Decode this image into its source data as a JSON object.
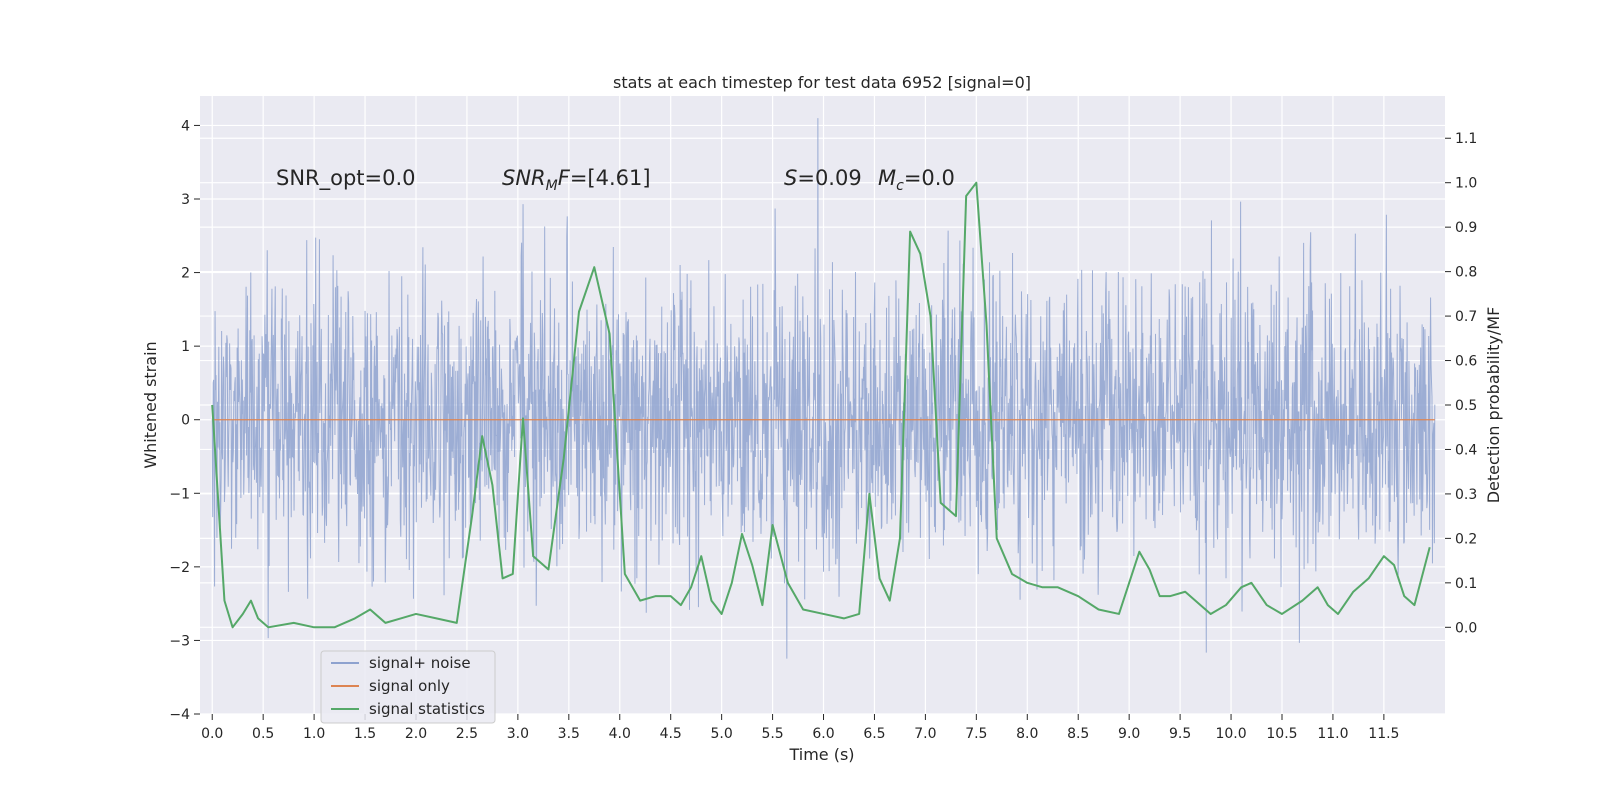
{
  "chart_data": {
    "type": "line",
    "title": "stats at each timestep for test data 6952 [signal=0]",
    "xlabel": "Time (s)",
    "ylabel": "Whitened strain",
    "y2label": "Detection probability/MF",
    "xlim": [
      -0.12,
      12.1
    ],
    "ylim": [
      -4.0,
      4.4
    ],
    "y2lim": [
      -0.195,
      1.195
    ],
    "x_ticks": [
      0.0,
      0.5,
      1.0,
      1.5,
      2.0,
      2.5,
      3.0,
      3.5,
      4.0,
      4.5,
      5.0,
      5.5,
      6.0,
      6.5,
      7.0,
      7.5,
      8.0,
      8.5,
      9.0,
      9.5,
      10.0,
      10.5,
      11.0,
      11.5
    ],
    "x_tick_labels": [
      "0.0",
      "0.5",
      "1.0",
      "1.5",
      "2.0",
      "2.5",
      "3.0",
      "3.5",
      "4.0",
      "4.5",
      "5.0",
      "5.5",
      "6.0",
      "6.5",
      "7.0",
      "7.5",
      "8.0",
      "8.5",
      "9.0",
      "9.5",
      "10.0",
      "10.5",
      "11.0",
      "11.5"
    ],
    "y_ticks": [
      -4,
      -3,
      -2,
      -1,
      0,
      1,
      2,
      3,
      4
    ],
    "y_tick_labels": [
      "−4",
      "−3",
      "−2",
      "−1",
      "0",
      "1",
      "2",
      "3",
      "4"
    ],
    "y2_ticks": [
      0.0,
      0.1,
      0.2,
      0.3,
      0.4,
      0.5,
      0.6,
      0.7,
      0.8,
      0.9,
      1.0,
      1.1
    ],
    "y2_tick_labels": [
      "0.0",
      "0.1",
      "0.2",
      "0.3",
      "0.4",
      "0.5",
      "0.6",
      "0.7",
      "0.8",
      "0.9",
      "1.0",
      "1.1"
    ],
    "grid": true,
    "legend_position": "bottom-left",
    "annotations": {
      "snr_opt": "SNR_opt=0.0",
      "snr_mf": "=[4.61]",
      "s_stat": "=0.09",
      "mc": "=0.0"
    },
    "series": [
      {
        "name": "signal+ noise",
        "axis": "left",
        "color": "#8ea2cf",
        "x_range": [
          0.0,
          12.0
        ],
        "y_range": [
          -3.5,
          4.1
        ],
        "typical_envelope": [
          -2.3,
          2.3
        ],
        "note_values": "dense whitened noise samples"
      },
      {
        "name": "signal only",
        "axis": "left",
        "color": "#dd8452",
        "x": [
          0.0,
          12.0
        ],
        "y": [
          0.0,
          0.0
        ]
      },
      {
        "name": "signal statistics",
        "axis": "right",
        "color": "#55a868",
        "x": [
          0.0,
          0.12,
          0.2,
          0.3,
          0.38,
          0.45,
          0.55,
          0.8,
          1.0,
          1.2,
          1.4,
          1.55,
          1.7,
          1.85,
          2.0,
          2.2,
          2.4,
          2.55,
          2.65,
          2.75,
          2.85,
          2.95,
          3.05,
          3.15,
          3.3,
          3.45,
          3.6,
          3.75,
          3.9,
          4.05,
          4.2,
          4.35,
          4.5,
          4.6,
          4.7,
          4.8,
          4.9,
          5.0,
          5.1,
          5.2,
          5.3,
          5.4,
          5.5,
          5.65,
          5.8,
          6.0,
          6.2,
          6.35,
          6.45,
          6.55,
          6.65,
          6.75,
          6.85,
          6.95,
          7.05,
          7.15,
          7.3,
          7.4,
          7.5,
          7.6,
          7.7,
          7.85,
          8.0,
          8.15,
          8.3,
          8.5,
          8.7,
          8.9,
          9.0,
          9.1,
          9.2,
          9.3,
          9.4,
          9.55,
          9.7,
          9.8,
          9.95,
          10.1,
          10.2,
          10.35,
          10.5,
          10.7,
          10.85,
          10.95,
          11.05,
          11.2,
          11.35,
          11.5,
          11.6,
          11.7,
          11.8,
          11.95
        ],
        "y": [
          0.5,
          0.06,
          0.0,
          0.03,
          0.06,
          0.02,
          0.0,
          0.01,
          0.0,
          0.0,
          0.02,
          0.04,
          0.01,
          0.02,
          0.03,
          0.02,
          0.01,
          0.25,
          0.43,
          0.32,
          0.11,
          0.12,
          0.47,
          0.16,
          0.13,
          0.38,
          0.71,
          0.81,
          0.66,
          0.12,
          0.06,
          0.07,
          0.07,
          0.05,
          0.09,
          0.16,
          0.06,
          0.03,
          0.1,
          0.21,
          0.14,
          0.05,
          0.23,
          0.1,
          0.04,
          0.03,
          0.02,
          0.03,
          0.3,
          0.11,
          0.06,
          0.2,
          0.89,
          0.84,
          0.7,
          0.28,
          0.25,
          0.97,
          1.0,
          0.68,
          0.2,
          0.12,
          0.1,
          0.09,
          0.09,
          0.07,
          0.04,
          0.03,
          0.1,
          0.17,
          0.13,
          0.07,
          0.07,
          0.08,
          0.05,
          0.03,
          0.05,
          0.09,
          0.1,
          0.05,
          0.03,
          0.06,
          0.09,
          0.05,
          0.03,
          0.08,
          0.11,
          0.16,
          0.14,
          0.07,
          0.05,
          0.18
        ]
      }
    ]
  }
}
